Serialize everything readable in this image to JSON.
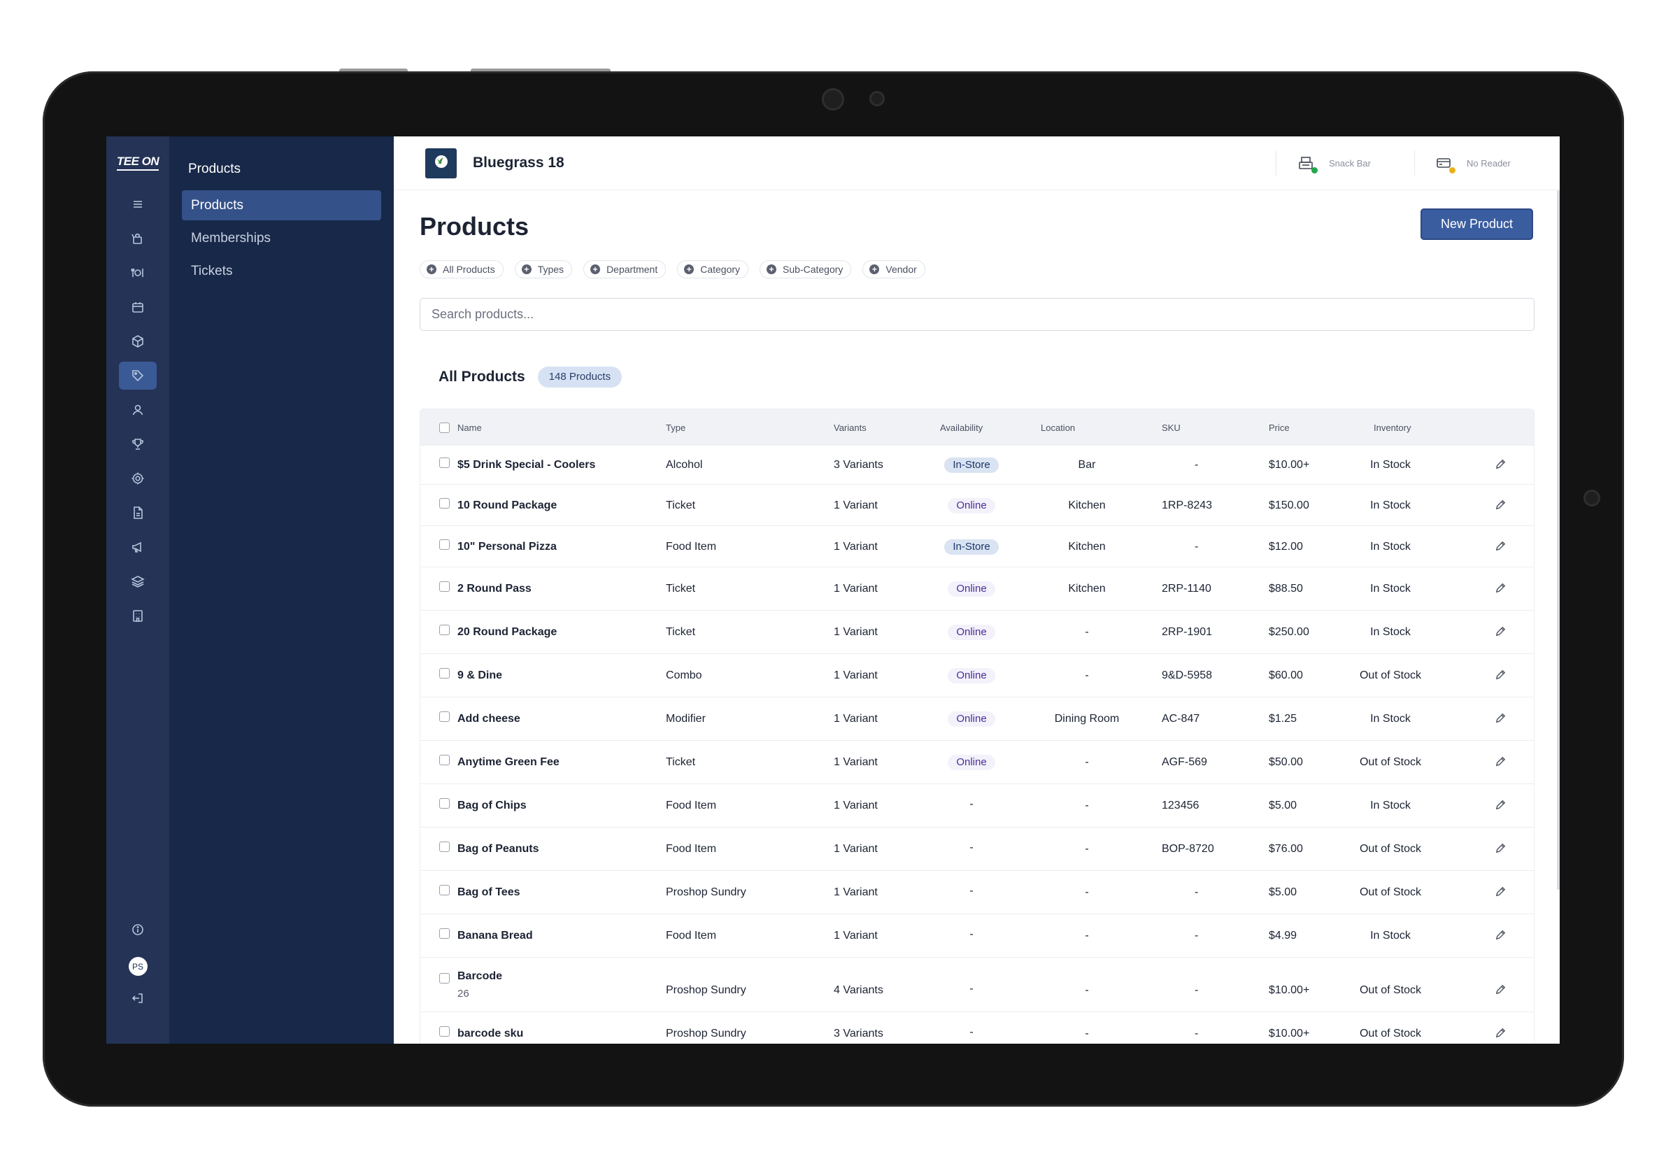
{
  "brand": {
    "logo_text": "TEE ON"
  },
  "rail": {
    "items": [
      {
        "icon": "menu-icon",
        "active": false
      },
      {
        "icon": "shop-icon",
        "active": false
      },
      {
        "icon": "dining-icon",
        "active": false
      },
      {
        "icon": "calendar-icon",
        "active": false
      },
      {
        "icon": "box-icon",
        "active": false
      },
      {
        "icon": "tag-icon",
        "active": true
      },
      {
        "icon": "user-icon",
        "active": false
      },
      {
        "icon": "trophy-icon",
        "active": false
      },
      {
        "icon": "gear-icon",
        "active": false
      },
      {
        "icon": "document-icon",
        "active": false
      },
      {
        "icon": "megaphone-icon",
        "active": false
      },
      {
        "icon": "layers-icon",
        "active": false
      },
      {
        "icon": "building-icon",
        "active": false
      }
    ],
    "avatar_initials": "PS"
  },
  "submenu": {
    "title": "Products",
    "items": [
      "Products",
      "Memberships",
      "Tickets"
    ]
  },
  "topbar": {
    "venue_name": "Bluegrass 18",
    "terminal_label": "Snack Bar",
    "reader_label": "No Reader",
    "terminal_status_color": "#22a84a",
    "reader_status_color": "#e8b21a"
  },
  "page": {
    "title": "Products",
    "new_button_label": "New Product",
    "filters": [
      "All Products",
      "Types",
      "Department",
      "Category",
      "Sub-Category",
      "Vendor"
    ],
    "search_placeholder": "Search products...",
    "section_title": "All Products",
    "count_badge": "148 Products"
  },
  "table": {
    "columns": [
      "Name",
      "Type",
      "Variants",
      "Availability",
      "Location",
      "SKU",
      "Price",
      "Inventory"
    ],
    "rows": [
      {
        "name": "$5 Drink Special - Coolers",
        "sub": "",
        "type": "Alcohol",
        "variants": "3 Variants",
        "availability": "In-Store",
        "location": "Bar",
        "sku": "-",
        "price": "$10.00+",
        "inventory": "In Stock"
      },
      {
        "name": "10 Round Package",
        "sub": "",
        "type": "Ticket",
        "variants": "1 Variant",
        "availability": "Online",
        "location": "Kitchen",
        "sku": "1RP-8243",
        "price": "$150.00",
        "inventory": "In Stock"
      },
      {
        "name": "10\" Personal Pizza",
        "sub": "",
        "type": "Food Item",
        "variants": "1 Variant",
        "availability": "In-Store",
        "location": "Kitchen",
        "sku": "-",
        "price": "$12.00",
        "inventory": "In Stock"
      },
      {
        "name": "2 Round Pass",
        "sub": "",
        "type": "Ticket",
        "variants": "1 Variant",
        "availability": "Online",
        "location": "Kitchen",
        "sku": "2RP-1140",
        "price": "$88.50",
        "inventory": "In Stock"
      },
      {
        "name": "20 Round Package",
        "sub": "",
        "type": "Ticket",
        "variants": "1 Variant",
        "availability": "Online",
        "location": "-",
        "sku": "2RP-1901",
        "price": "$250.00",
        "inventory": "In Stock"
      },
      {
        "name": "9 & Dine",
        "sub": "",
        "type": "Combo",
        "variants": "1 Variant",
        "availability": "Online",
        "location": "-",
        "sku": "9&D-5958",
        "price": "$60.00",
        "inventory": "Out of Stock"
      },
      {
        "name": "Add cheese",
        "sub": "",
        "type": "Modifier",
        "variants": "1 Variant",
        "availability": "Online",
        "location": "Dining Room",
        "sku": "AC-847",
        "price": "$1.25",
        "inventory": "In Stock"
      },
      {
        "name": "Anytime Green Fee",
        "sub": "",
        "type": "Ticket",
        "variants": "1 Variant",
        "availability": "Online",
        "location": "-",
        "sku": "AGF-569",
        "price": "$50.00",
        "inventory": "Out of Stock"
      },
      {
        "name": "Bag of Chips",
        "sub": "",
        "type": "Food Item",
        "variants": "1 Variant",
        "availability": "-",
        "location": "-",
        "sku": "123456",
        "price": "$5.00",
        "inventory": "In Stock"
      },
      {
        "name": "Bag of Peanuts",
        "sub": "",
        "type": "Food Item",
        "variants": "1 Variant",
        "availability": "-",
        "location": "-",
        "sku": "BOP-8720",
        "price": "$76.00",
        "inventory": "Out of Stock"
      },
      {
        "name": "Bag of Tees",
        "sub": "",
        "type": "Proshop Sundry",
        "variants": "1 Variant",
        "availability": "-",
        "location": "-",
        "sku": "-",
        "price": "$5.00",
        "inventory": "Out of Stock"
      },
      {
        "name": "Banana Bread",
        "sub": "",
        "type": "Food Item",
        "variants": "1 Variant",
        "availability": "-",
        "location": "-",
        "sku": "-",
        "price": "$4.99",
        "inventory": "In Stock"
      },
      {
        "name": "Barcode",
        "sub": "26",
        "type": "Proshop Sundry",
        "variants": "4 Variants",
        "availability": "-",
        "location": "-",
        "sku": "-",
        "price": "$10.00+",
        "inventory": "Out of Stock"
      },
      {
        "name": "barcode sku",
        "sub": "",
        "type": "Proshop Sundry",
        "variants": "3 Variants",
        "availability": "-",
        "location": "-",
        "sku": "-",
        "price": "$10.00+",
        "inventory": "Out of Stock"
      }
    ]
  }
}
